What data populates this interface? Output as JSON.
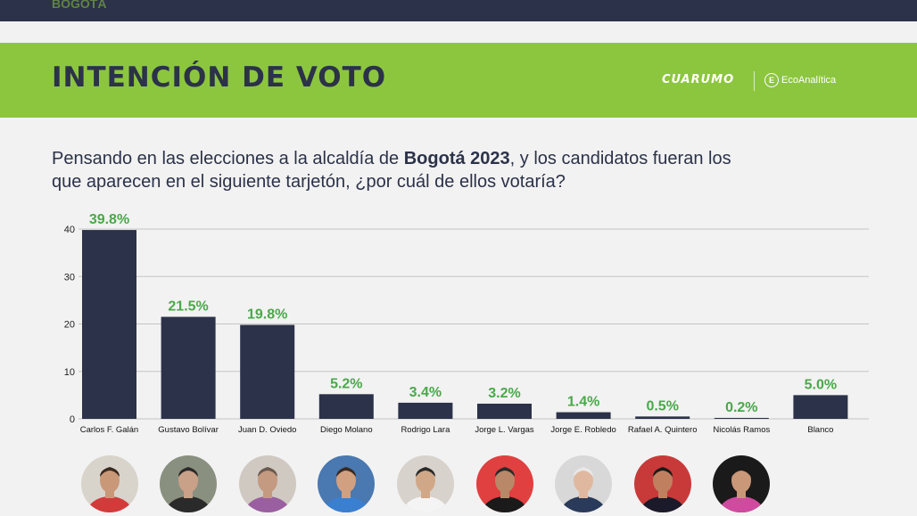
{
  "header": {
    "city_label": "BOGOTÁ",
    "title": "INTENCIÓN DE VOTO",
    "logo_primary": "CUARUMO",
    "logo_secondary": "EcoAnalítica",
    "logo_secondary_mark": "E"
  },
  "question": {
    "part1": "Pensando en las elecciones a la alcaldía de ",
    "bold": "Bogotá 2023",
    "part2": ", y los candidatos fueran los que aparecen en el siguiente tarjetón, ¿por cuál de ellos votaría?"
  },
  "colors": {
    "bar": "#2b3249",
    "label": "#4aa84a",
    "banner": "#8cc63f"
  },
  "chart_data": {
    "type": "bar",
    "categories": [
      "Carlos F. Galán",
      "Gustavo Bolívar",
      "Juan D. Oviedo",
      "Diego Molano",
      "Rodrigo Lara",
      "Jorge L. Vargas",
      "Jorge E. Robledo",
      "Rafael A. Quintero",
      "Nicolás Ramos",
      "Blanco"
    ],
    "values": [
      39.8,
      21.5,
      19.8,
      5.2,
      3.4,
      3.2,
      1.4,
      0.5,
      0.2,
      5.0
    ],
    "value_labels": [
      "39.8%",
      "21.5%",
      "19.8%",
      "5.2%",
      "3.4%",
      "3.2%",
      "1.4%",
      "0.5%",
      "0.2%",
      "5.0%"
    ],
    "yticks": [
      0,
      10,
      20,
      30,
      40
    ],
    "ylim": [
      0,
      40
    ],
    "grid": true
  },
  "photos": [
    {
      "bg": "#d8d4cc",
      "shirt": "#d33a3a",
      "skin": "#c99878",
      "hair": "#3a2a20"
    },
    {
      "bg": "#8a9080",
      "shirt": "#2a2a2a",
      "skin": "#c9a088",
      "hair": "#2a2a2a"
    },
    {
      "bg": "#cfc9c2",
      "shirt": "#9a5fa0",
      "skin": "#c49a80",
      "hair": "#6a5a50"
    },
    {
      "bg": "#4a78b0",
      "shirt": "#3a7fd0",
      "skin": "#d0a080",
      "hair": "#3a2a20"
    },
    {
      "bg": "#d8d2cc",
      "shirt": "#f4f4f4",
      "skin": "#d0a888",
      "hair": "#2a2a2a"
    },
    {
      "bg": "#e04040",
      "shirt": "#1a1a1a",
      "skin": "#b88868",
      "hair": "#2a2a2a"
    },
    {
      "bg": "#d8d8d8",
      "shirt": "#2a3a5a",
      "skin": "#e0b8a0",
      "hair": "#e8e8e8"
    },
    {
      "bg": "#c83a3a",
      "shirt": "#1a1a2a",
      "skin": "#c08060",
      "hair": "#1a1a1a"
    },
    {
      "bg": "#1a1a1a",
      "shirt": "#d04aa0",
      "skin": "#c89878",
      "hair": "#1a1a1a"
    }
  ]
}
